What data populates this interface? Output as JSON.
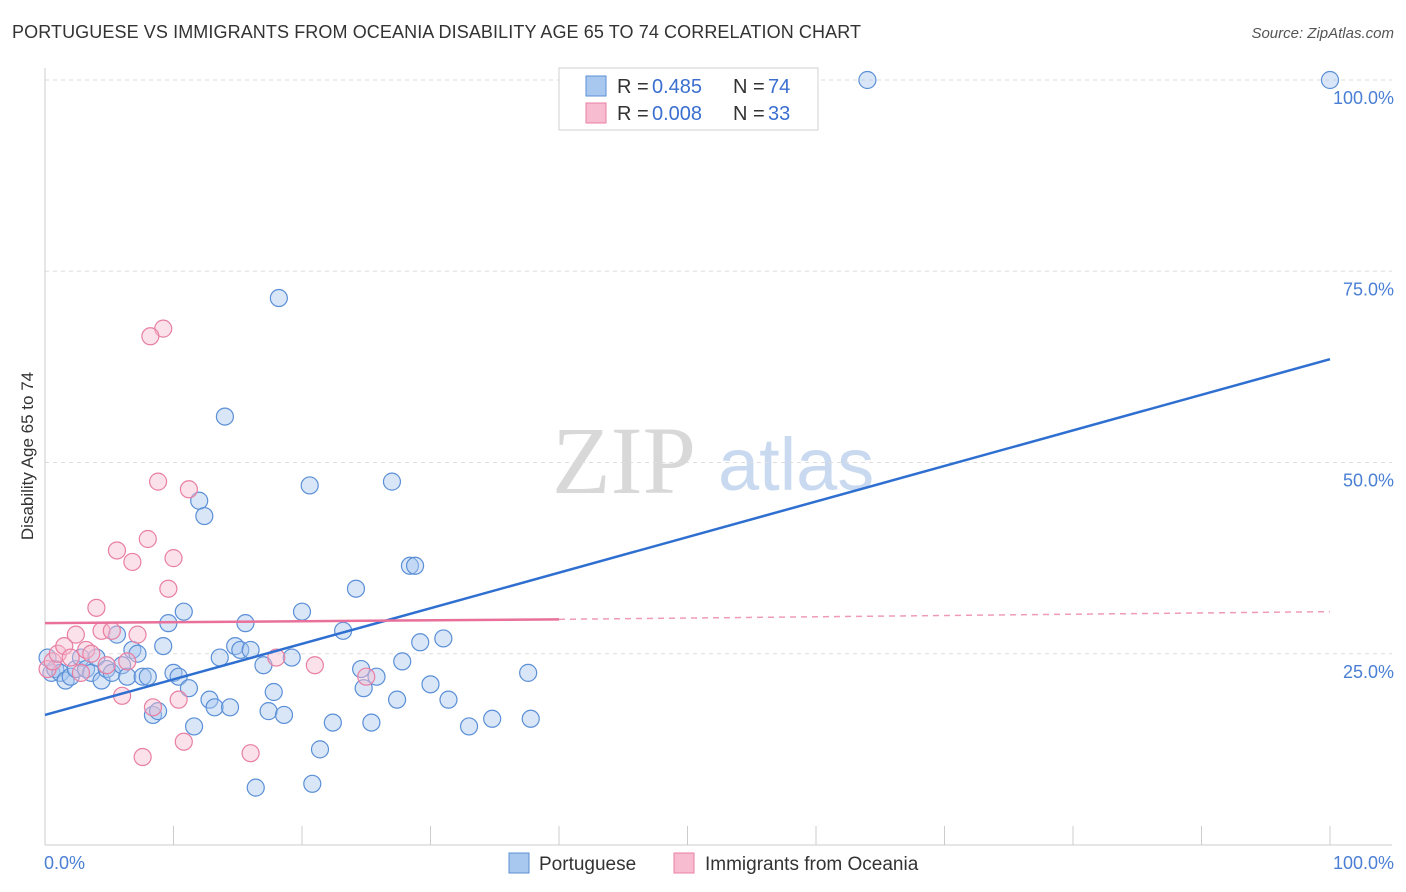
{
  "header": {
    "title": "PORTUGUESE VS IMMIGRANTS FROM OCEANIA DISABILITY AGE 65 TO 74 CORRELATION CHART",
    "source": "Source: ZipAtlas.com"
  },
  "watermark": {
    "zip": "ZIP",
    "atlas": "atlas"
  },
  "legend": {
    "series1": {
      "r_label": "R =",
      "r_value": "0.485",
      "n_label": "N =",
      "n_value": "74"
    },
    "series2": {
      "r_label": "R =",
      "r_value": "0.008",
      "n_label": "N =",
      "n_value": "33"
    }
  },
  "colors": {
    "blue_fill": "#a8c8f0",
    "blue_stroke": "#5b8fd6",
    "blue_line": "#2f6fd0",
    "pink_fill": "#f7bcd0",
    "pink_stroke": "#e87fa3",
    "pink_line": "#e8709a",
    "grid": "#dddddd",
    "tick_label": "#4a7fd4"
  },
  "chart_data": {
    "type": "scatter",
    "title": "PORTUGUESE VS IMMIGRANTS FROM OCEANIA DISABILITY AGE 65 TO 74 CORRELATION CHART",
    "xlabel": "",
    "ylabel": "Disability Age 65 to 74",
    "xlim": [
      0,
      100
    ],
    "ylim": [
      0,
      100
    ],
    "x_tick_labels": [
      "0.0%",
      "100.0%"
    ],
    "y_tick_labels": [
      "25.0%",
      "50.0%",
      "75.0%",
      "100.0%"
    ],
    "y_ticks": [
      25,
      50,
      75,
      100
    ],
    "grid": true,
    "legend_position": "top-center",
    "series": [
      {
        "name": "Portuguese",
        "color": "blue",
        "trend": {
          "x": [
            0,
            100
          ],
          "y": [
            17.0,
            63.5
          ],
          "dashed_extension": false
        },
        "points": [
          [
            0.2,
            24.5
          ],
          [
            0.5,
            22.5
          ],
          [
            0.8,
            23.0
          ],
          [
            1.2,
            22.5
          ],
          [
            1.6,
            21.5
          ],
          [
            2.0,
            22.0
          ],
          [
            2.4,
            23.0
          ],
          [
            2.8,
            24.5
          ],
          [
            3.2,
            23.0
          ],
          [
            3.6,
            22.5
          ],
          [
            4.0,
            24.5
          ],
          [
            4.4,
            21.5
          ],
          [
            4.8,
            23.0
          ],
          [
            5.2,
            22.5
          ],
          [
            5.6,
            27.5
          ],
          [
            6.0,
            23.5
          ],
          [
            6.4,
            22.0
          ],
          [
            6.8,
            25.5
          ],
          [
            7.2,
            25.0
          ],
          [
            7.6,
            22.0
          ],
          [
            8.0,
            22.0
          ],
          [
            8.4,
            17.0
          ],
          [
            8.8,
            17.5
          ],
          [
            9.2,
            26.0
          ],
          [
            9.6,
            29.0
          ],
          [
            10.0,
            22.5
          ],
          [
            10.4,
            22.0
          ],
          [
            10.8,
            30.5
          ],
          [
            11.2,
            20.5
          ],
          [
            11.6,
            15.5
          ],
          [
            12.0,
            45.0
          ],
          [
            12.4,
            43.0
          ],
          [
            12.8,
            19.0
          ],
          [
            13.2,
            18.0
          ],
          [
            13.6,
            24.5
          ],
          [
            14.0,
            56.0
          ],
          [
            14.4,
            18.0
          ],
          [
            14.8,
            26.0
          ],
          [
            15.2,
            25.5
          ],
          [
            15.6,
            29.0
          ],
          [
            16.0,
            25.5
          ],
          [
            16.4,
            7.5
          ],
          [
            17.0,
            23.5
          ],
          [
            17.4,
            17.5
          ],
          [
            17.8,
            20.0
          ],
          [
            18.6,
            17.0
          ],
          [
            19.2,
            24.5
          ],
          [
            20.0,
            30.5
          ],
          [
            20.6,
            47.0
          ],
          [
            21.4,
            12.5
          ],
          [
            22.4,
            16.0
          ],
          [
            23.2,
            28.0
          ],
          [
            24.2,
            33.5
          ],
          [
            24.6,
            23.0
          ],
          [
            24.8,
            20.5
          ],
          [
            25.4,
            16.0
          ],
          [
            25.8,
            22.0
          ],
          [
            27.0,
            47.5
          ],
          [
            27.4,
            19.0
          ],
          [
            28.4,
            36.5
          ],
          [
            29.2,
            26.5
          ],
          [
            30.0,
            21.0
          ],
          [
            31.0,
            27.0
          ],
          [
            31.4,
            19.0
          ],
          [
            33.0,
            15.5
          ],
          [
            34.8,
            16.5
          ],
          [
            37.6,
            22.5
          ],
          [
            37.8,
            16.5
          ],
          [
            18.2,
            71.5
          ],
          [
            28.8,
            36.5
          ],
          [
            27.8,
            24.0
          ],
          [
            20.8,
            8.0
          ],
          [
            64.0,
            100.0
          ],
          [
            100.0,
            100.0
          ]
        ]
      },
      {
        "name": "Immigrants from Oceania",
        "color": "pink",
        "trend": {
          "x": [
            0,
            40
          ],
          "y": [
            29.0,
            29.5
          ],
          "dashed_extension": true,
          "dashed_x": [
            40,
            100
          ],
          "dashed_y": [
            29.5,
            30.5
          ]
        },
        "points": [
          [
            0.2,
            23.0
          ],
          [
            0.6,
            24.0
          ],
          [
            1.0,
            25.0
          ],
          [
            1.5,
            26.0
          ],
          [
            2.0,
            24.5
          ],
          [
            2.4,
            27.5
          ],
          [
            2.8,
            22.5
          ],
          [
            3.2,
            25.5
          ],
          [
            3.6,
            25.0
          ],
          [
            4.0,
            31.0
          ],
          [
            4.4,
            28.0
          ],
          [
            4.8,
            23.5
          ],
          [
            5.2,
            28.0
          ],
          [
            5.6,
            38.5
          ],
          [
            6.0,
            19.5
          ],
          [
            6.4,
            24.0
          ],
          [
            6.8,
            37.0
          ],
          [
            7.2,
            27.5
          ],
          [
            7.6,
            11.5
          ],
          [
            8.0,
            40.0
          ],
          [
            8.4,
            18.0
          ],
          [
            8.8,
            47.5
          ],
          [
            9.2,
            67.5
          ],
          [
            9.6,
            33.5
          ],
          [
            10.0,
            37.5
          ],
          [
            10.4,
            19.0
          ],
          [
            10.8,
            13.5
          ],
          [
            11.2,
            46.5
          ],
          [
            16.0,
            12.0
          ],
          [
            18.0,
            24.5
          ],
          [
            21.0,
            23.5
          ],
          [
            8.2,
            66.5
          ],
          [
            25.0,
            22.0
          ]
        ]
      }
    ]
  },
  "bottom_legend": {
    "series1_label": "Portuguese",
    "series2_label": "Immigrants from Oceania"
  }
}
